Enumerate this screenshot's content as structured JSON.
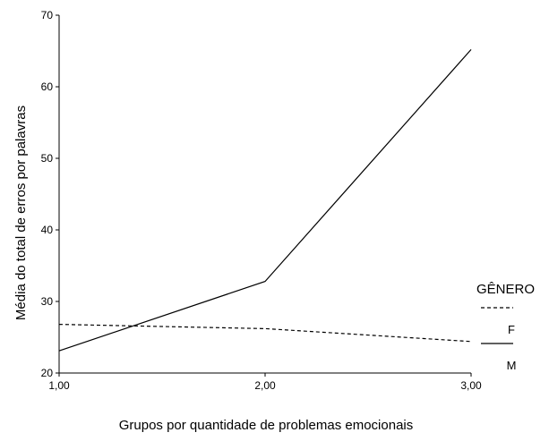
{
  "chart_data": {
    "type": "line",
    "x": [
      1.0,
      2.0,
      3.0
    ],
    "x_tick_labels": [
      "1,00",
      "2,00",
      "3,00"
    ],
    "y_ticks": [
      20,
      30,
      40,
      50,
      60,
      70
    ],
    "y_tick_labels": [
      "20",
      "30",
      "40",
      "50",
      "60",
      "70"
    ],
    "xlim": [
      1.0,
      3.0
    ],
    "ylim": [
      20,
      70
    ],
    "xlabel": "Grupos por quantidade de problemas emocionais",
    "ylabel": "Média do total de erros por palavras",
    "legend": {
      "title": "GÊNERO",
      "placement": "right"
    },
    "series": [
      {
        "name": "F",
        "style": "dashed",
        "values": [
          26.8,
          26.2,
          24.4
        ]
      },
      {
        "name": "M",
        "style": "solid",
        "values": [
          23.1,
          32.8,
          65.2
        ]
      }
    ],
    "colors": {
      "line": "#000000",
      "background": "#ffffff"
    }
  }
}
